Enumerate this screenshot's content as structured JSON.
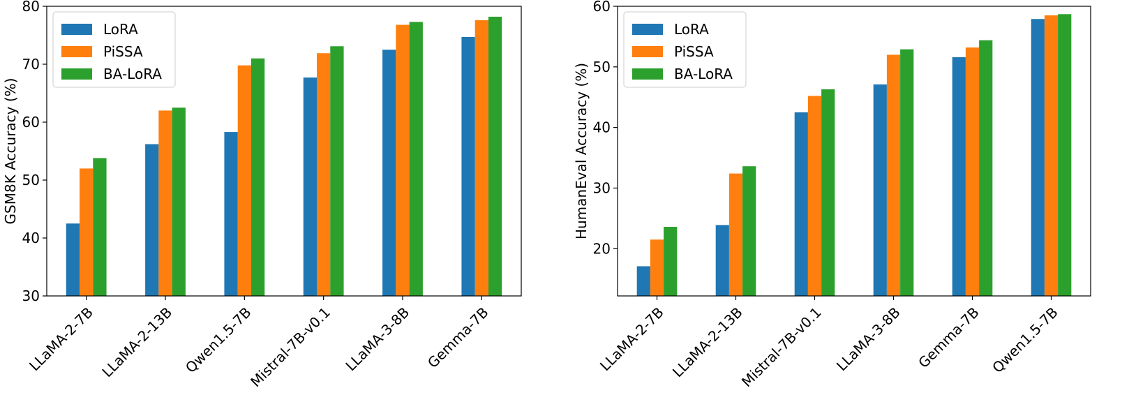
{
  "chart_data": [
    {
      "type": "bar",
      "categories": [
        "LLaMA-2-7B",
        "LLaMA-2-13B",
        "Qwen1.5-7B",
        "Mistral-7B-v0.1",
        "LLaMA-3-8B",
        "Gemma-7B"
      ],
      "series": [
        {
          "name": "LoRA",
          "color": "#1f77b4",
          "values": [
            42.5,
            56.2,
            58.3,
            67.7,
            72.5,
            74.7
          ]
        },
        {
          "name": "PiSSA",
          "color": "#ff7f0e",
          "values": [
            52.0,
            62.0,
            69.8,
            71.9,
            76.8,
            77.6
          ]
        },
        {
          "name": "BA-LoRA",
          "color": "#2ca02c",
          "values": [
            53.8,
            62.5,
            71.0,
            73.1,
            77.3,
            78.2
          ]
        }
      ],
      "title": "",
      "xlabel": "",
      "ylabel": "GSM8K Accuracy (%)",
      "ylim": [
        30,
        80
      ],
      "yticks": [
        30,
        40,
        50,
        60,
        70,
        80
      ],
      "grid": false,
      "legend_position": "top-left"
    },
    {
      "type": "bar",
      "categories": [
        "LLaMA-2-7B",
        "LLaMA-2-13B",
        "Mistral-7B-v0.1",
        "LLaMA-3-8B",
        "Gemma-7B",
        "Qwen1.5-7B"
      ],
      "series": [
        {
          "name": "LoRA",
          "color": "#1f77b4",
          "values": [
            17.1,
            23.9,
            42.5,
            47.1,
            51.6,
            57.9
          ]
        },
        {
          "name": "PiSSA",
          "color": "#ff7f0e",
          "values": [
            21.5,
            32.4,
            45.2,
            52.0,
            53.2,
            58.5
          ]
        },
        {
          "name": "BA-LoRA",
          "color": "#2ca02c",
          "values": [
            23.6,
            33.6,
            46.3,
            52.9,
            54.4,
            58.7
          ]
        }
      ],
      "title": "",
      "xlabel": "",
      "ylabel": "HumanEval Accuracy (%)",
      "ylim": [
        12.2,
        60
      ],
      "yticks": [
        20,
        30,
        40,
        50,
        60
      ],
      "grid": false,
      "legend_position": "top-left"
    }
  ]
}
